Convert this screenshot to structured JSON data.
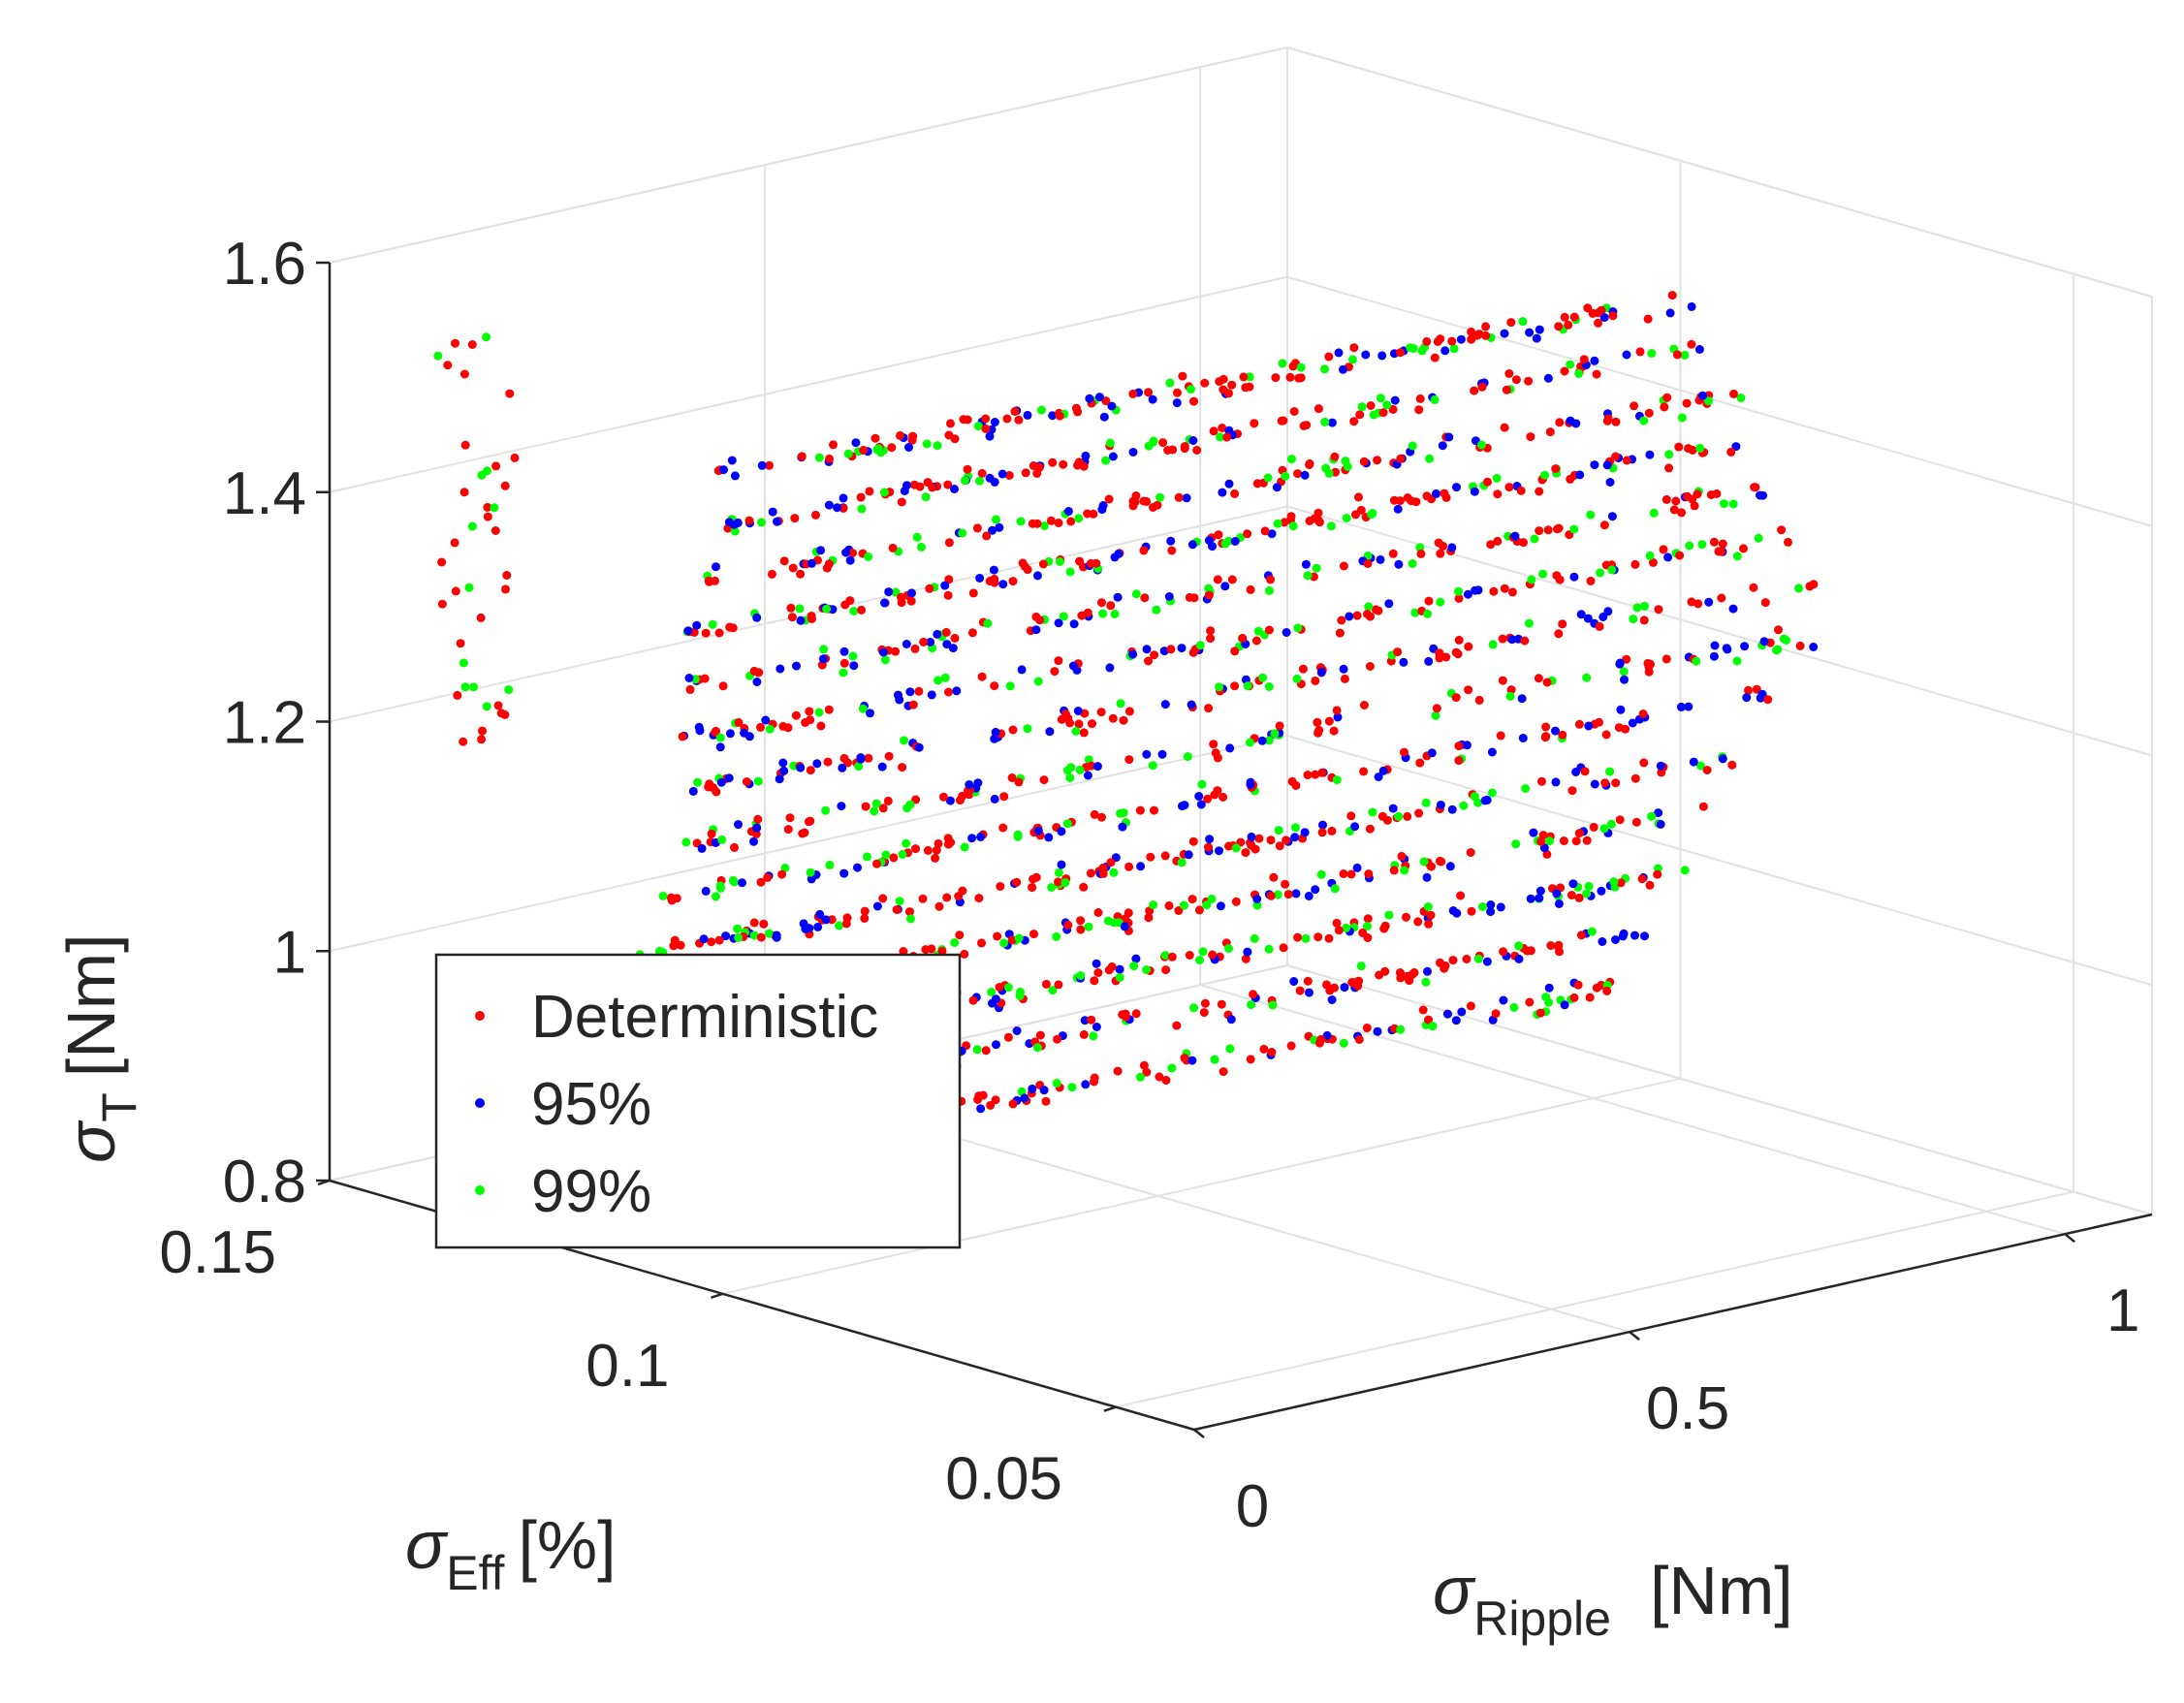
{
  "chart_data": {
    "type": "scatter3d",
    "axes": {
      "x": {
        "symbol": "σ",
        "subscript": "Ripple",
        "unit": "[Nm]",
        "range": [
          0,
          1.1
        ],
        "ticks": [
          0,
          0.5,
          1
        ],
        "tick_labels": [
          "0",
          "0.5",
          "1"
        ]
      },
      "y": {
        "symbol": "σ",
        "subscript": "Eff",
        "unit": "[%]",
        "range": [
          0.04,
          0.15
        ],
        "ticks": [
          0.05,
          0.1,
          0.15
        ],
        "tick_labels": [
          "0.05",
          "0.1",
          "0.15"
        ]
      },
      "z": {
        "symbol": "σ",
        "subscript": "T",
        "unit": "[Nm]",
        "range": [
          0.8,
          1.6
        ],
        "ticks": [
          0.8,
          1.0,
          1.2,
          1.4,
          1.6
        ],
        "tick_labels": [
          "0.8",
          "1",
          "1.2",
          "1.4",
          "1.6"
        ]
      }
    },
    "grid": true,
    "legend_position": "bottom-left",
    "series": [
      {
        "name": "Deterministic",
        "color": "#ff0000",
        "marker": "dot",
        "approx_points": 3500
      },
      {
        "name": "95%",
        "color": "#0000ff",
        "marker": "dot",
        "approx_points": 1800
      },
      {
        "name": "99%",
        "color": "#00ff00",
        "marker": "dot",
        "approx_points": 1500
      }
    ],
    "point_cloud_description": "Points form diagonal streaks rising with σ_Ripple from about 0.05 to 1.0 Nm, spanning σ_Eff about 0.05-0.13 % and σ_T about 0.85-1.57 Nm"
  }
}
